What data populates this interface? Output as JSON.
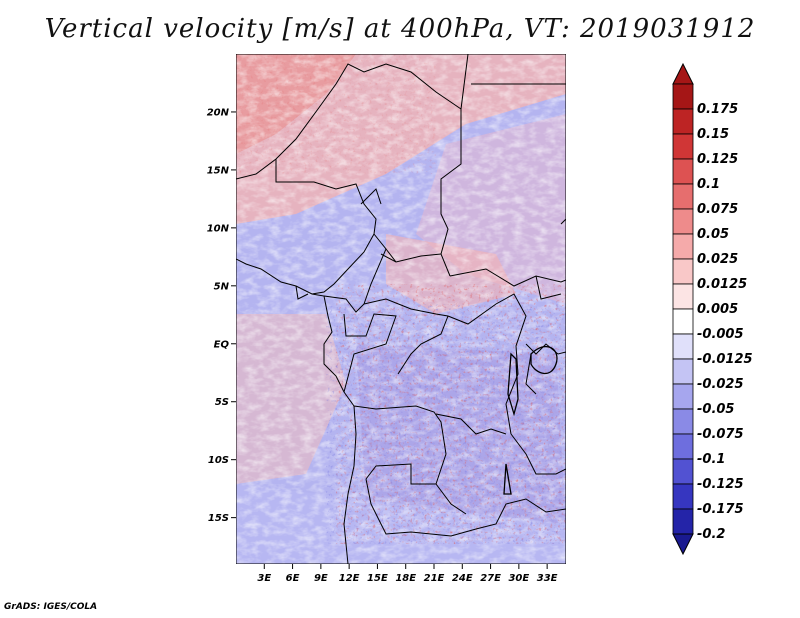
{
  "title": "Vertical velocity [m/s] at 400hPa, VT: 2019031912",
  "credit": "GrADS: IGES/COLA",
  "map": {
    "lat_range": [
      -19,
      25
    ],
    "lon_range": [
      0,
      35
    ],
    "lat_ticks": [
      {
        "value": 20,
        "label": "20N"
      },
      {
        "value": 15,
        "label": "15N"
      },
      {
        "value": 10,
        "label": "10N"
      },
      {
        "value": 5,
        "label": "5N"
      },
      {
        "value": 0,
        "label": "EQ"
      },
      {
        "value": -5,
        "label": "5S"
      },
      {
        "value": -10,
        "label": "10S"
      },
      {
        "value": -15,
        "label": "15S"
      }
    ],
    "lon_ticks": [
      {
        "value": 3,
        "label": "3E"
      },
      {
        "value": 6,
        "label": "6E"
      },
      {
        "value": 9,
        "label": "9E"
      },
      {
        "value": 12,
        "label": "12E"
      },
      {
        "value": 15,
        "label": "15E"
      },
      {
        "value": 18,
        "label": "18E"
      },
      {
        "value": 21,
        "label": "21E"
      },
      {
        "value": 24,
        "label": "24E"
      },
      {
        "value": 27,
        "label": "27E"
      },
      {
        "value": 30,
        "label": "30E"
      },
      {
        "value": 33,
        "label": "33E"
      }
    ]
  },
  "colorbar": {
    "levels": [
      {
        "label": "0.175",
        "color": "#a51616"
      },
      {
        "label": "0.15",
        "color": "#bd2424"
      },
      {
        "label": "0.125",
        "color": "#d03636"
      },
      {
        "label": "0.1",
        "color": "#dd5252"
      },
      {
        "label": "0.075",
        "color": "#e66e6e"
      },
      {
        "label": "0.05",
        "color": "#ee8b8b"
      },
      {
        "label": "0.025",
        "color": "#f5aaaa"
      },
      {
        "label": "0.0125",
        "color": "#f9c8c8"
      },
      {
        "label": "0.005",
        "color": "#fce4e4"
      },
      {
        "label": "-0.005",
        "color": "#ffffff"
      },
      {
        "label": "-0.0125",
        "color": "#e0e0fa"
      },
      {
        "label": "-0.025",
        "color": "#c4c4f4"
      },
      {
        "label": "-0.05",
        "color": "#a6a6ee"
      },
      {
        "label": "-0.075",
        "color": "#8a8ae6"
      },
      {
        "label": "-0.1",
        "color": "#6e6ede"
      },
      {
        "label": "-0.125",
        "color": "#5252d2"
      },
      {
        "label": "-0.175",
        "color": "#3636c0"
      },
      {
        "label": "-0.2",
        "color": "#2424a8"
      }
    ],
    "top_arrow_color": "#a51616",
    "bottom_arrow_color": "#1a1a90"
  }
}
